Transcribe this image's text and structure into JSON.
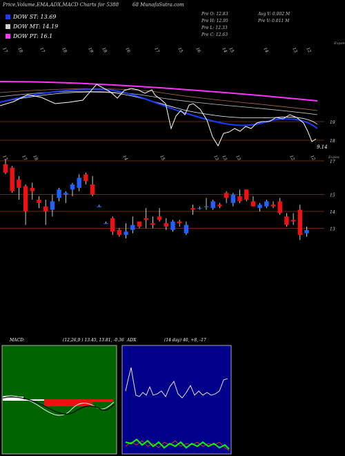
{
  "header": {
    "title_left": "Price,Volume,EMA,ADX,MACD Charts for 5388",
    "title_right": "68  MunafaSutra.com"
  },
  "legend": [
    {
      "label": "DOW ST: 13.69",
      "color": "#1a3cff"
    },
    {
      "label": "DOW MT: 14.19",
      "color": "#cfcfcf"
    },
    {
      "label": "DOW PT: 16.1",
      "color": "#ff33ff"
    }
  ],
  "ohlc": {
    "open": "Pre  O: 12.83",
    "high": "Pre  H: 12.95",
    "low": "Pre  L: 12.33",
    "close": "Pre  C: 12.63",
    "avg_vol": "Avg V: 0.002  M",
    "pre_vol": "Pre  V: 0.011 M"
  },
  "colors": {
    "up": "#2060ff",
    "down": "#ee1111",
    "ema_short": "#1a3cff",
    "ema_long": "#ff33ff",
    "grid": "#8a3a10",
    "macd_panel": "#006400",
    "adx_panel": "#00008b"
  },
  "top_dates": [
    "17",
    "18",
    "17",
    "18",
    "19",
    "18",
    "16",
    "17",
    "15",
    "16",
    "14",
    "15",
    "14",
    "13",
    "12"
  ],
  "ema_ticks": [
    {
      "label": "19",
      "value": 19
    },
    {
      "label": "18",
      "value": 18
    }
  ],
  "ema_last_price": "9.14",
  "candle_dates": [
    "17",
    "17",
    "18",
    "14",
    "15",
    "13",
    "13",
    "13",
    "12",
    "12"
  ],
  "candle_axis": [
    {
      "label": "17",
      "value": 17
    },
    {
      "label": "15",
      "value": 15
    },
    {
      "label": "14",
      "value": 14
    },
    {
      "label": "13",
      "value": 13
    }
  ],
  "candle_axis_note": "Expon",
  "top_axis_note": "Expon",
  "macd_label": "MACD:",
  "macd_values": "(12,26,9 ) 13.45, 13.81, -0.36",
  "adx_label": "ADX",
  "adx_values": "(14  day) 40, +8, -17",
  "chart_data": {
    "type": "candlestick",
    "ylim": [
      12.4,
      17.2
    ],
    "candles": [
      {
        "o": 16.8,
        "h": 17.1,
        "l": 16.2,
        "c": 16.3
      },
      {
        "o": 16.6,
        "h": 16.7,
        "l": 15.1,
        "c": 15.2
      },
      {
        "o": 15.9,
        "h": 16.1,
        "l": 14.7,
        "c": 15.4
      },
      {
        "o": 15.5,
        "h": 15.6,
        "l": 13.2,
        "c": 14.0
      },
      {
        "o": 15.4,
        "h": 15.7,
        "l": 14.7,
        "c": 15.2
      },
      {
        "o": 14.7,
        "h": 14.9,
        "l": 14.2,
        "c": 14.5
      },
      {
        "o": 14.3,
        "h": 14.7,
        "l": 13.2,
        "c": 14.0
      },
      {
        "o": 14.1,
        "h": 15.0,
        "l": 13.7,
        "c": 14.6
      },
      {
        "o": 14.8,
        "h": 15.4,
        "l": 14.6,
        "c": 15.3
      },
      {
        "o": 15.0,
        "h": 15.2,
        "l": 14.5,
        "c": 15.1
      },
      {
        "o": 15.3,
        "h": 15.7,
        "l": 14.9,
        "c": 15.6
      },
      {
        "o": 15.4,
        "h": 16.2,
        "l": 15.2,
        "c": 16.0
      },
      {
        "o": 16.2,
        "h": 16.3,
        "l": 15.6,
        "c": 15.8
      },
      {
        "o": 15.6,
        "h": 16.1,
        "l": 14.9,
        "c": 15.0
      },
      {
        "o": 14.3,
        "h": 14.4,
        "l": 14.3,
        "c": 14.3
      },
      {
        "o": 13.3,
        "h": 13.4,
        "l": 13.3,
        "c": 13.3
      },
      {
        "o": 13.6,
        "h": 13.7,
        "l": 12.6,
        "c": 12.8
      },
      {
        "o": 12.9,
        "h": 13.0,
        "l": 12.5,
        "c": 12.6
      },
      {
        "o": 12.6,
        "h": 13.3,
        "l": 12.4,
        "c": 12.8
      },
      {
        "o": 12.9,
        "h": 13.7,
        "l": 12.7,
        "c": 13.2
      },
      {
        "o": 13.4,
        "h": 13.4,
        "l": 13.0,
        "c": 13.1
      },
      {
        "o": 13.6,
        "h": 14.2,
        "l": 13.0,
        "c": 13.5
      },
      {
        "o": 13.3,
        "h": 13.7,
        "l": 13.0,
        "c": 13.2
      },
      {
        "o": 13.7,
        "h": 14.2,
        "l": 13.4,
        "c": 13.5
      },
      {
        "o": 13.3,
        "h": 13.6,
        "l": 12.9,
        "c": 13.1
      },
      {
        "o": 12.9,
        "h": 13.5,
        "l": 12.8,
        "c": 13.4
      },
      {
        "o": 13.4,
        "h": 13.5,
        "l": 13.1,
        "c": 13.3
      },
      {
        "o": 12.7,
        "h": 13.4,
        "l": 12.6,
        "c": 13.2
      },
      {
        "o": 14.2,
        "h": 14.4,
        "l": 13.8,
        "c": 14.1
      },
      {
        "o": 14.2,
        "h": 14.3,
        "l": 14.1,
        "c": 14.2
      },
      {
        "o": 14.3,
        "h": 14.8,
        "l": 14.1,
        "c": 14.3
      },
      {
        "o": 14.2,
        "h": 14.7,
        "l": 14.1,
        "c": 14.6
      },
      {
        "o": 14.4,
        "h": 14.5,
        "l": 14.2,
        "c": 14.3
      },
      {
        "o": 15.1,
        "h": 15.2,
        "l": 14.5,
        "c": 14.8
      },
      {
        "o": 14.5,
        "h": 15.1,
        "l": 14.3,
        "c": 15.0
      },
      {
        "o": 14.9,
        "h": 15.3,
        "l": 14.5,
        "c": 14.6
      },
      {
        "o": 15.3,
        "h": 15.3,
        "l": 14.6,
        "c": 14.7
      },
      {
        "o": 14.6,
        "h": 14.9,
        "l": 14.3,
        "c": 14.3
      },
      {
        "o": 14.2,
        "h": 14.5,
        "l": 14.0,
        "c": 14.4
      },
      {
        "o": 14.3,
        "h": 14.7,
        "l": 14.2,
        "c": 14.6
      },
      {
        "o": 14.4,
        "h": 14.6,
        "l": 14.2,
        "c": 14.3
      },
      {
        "o": 14.6,
        "h": 14.8,
        "l": 13.8,
        "c": 13.9
      },
      {
        "o": 13.7,
        "h": 13.9,
        "l": 13.1,
        "c": 13.2
      },
      {
        "o": 13.5,
        "h": 13.9,
        "l": 13.2,
        "c": 13.4
      },
      {
        "o": 14.1,
        "h": 14.4,
        "l": 12.3,
        "c": 12.6
      },
      {
        "o": 12.7,
        "h": 13.1,
        "l": 12.5,
        "c": 12.9
      }
    ]
  }
}
